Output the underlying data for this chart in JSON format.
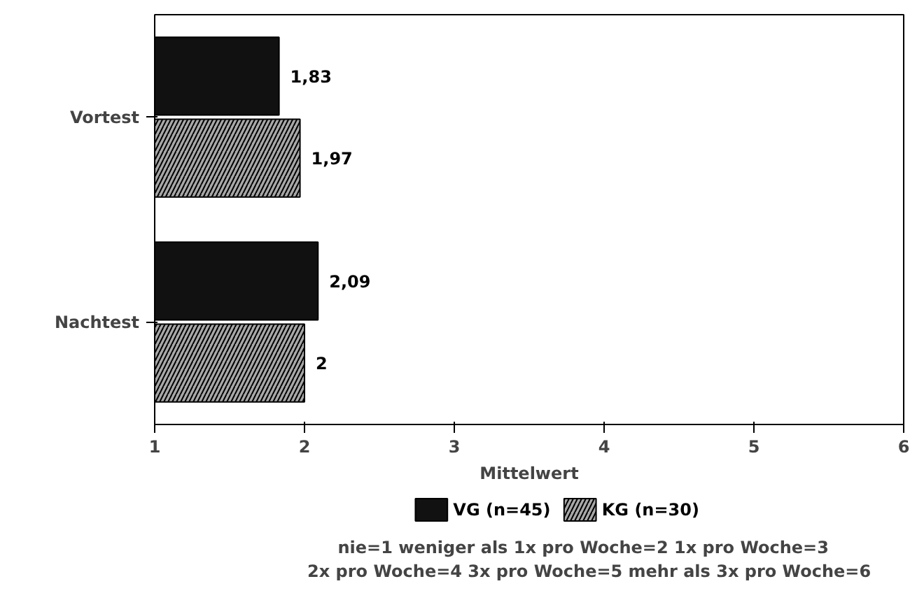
{
  "chart_data": {
    "type": "bar",
    "orientation": "horizontal",
    "categories": [
      "Vortest",
      "Nachtest"
    ],
    "xlabel": "Mittelwert",
    "xlim": [
      1,
      6
    ],
    "xticks": [
      1,
      2,
      3,
      4,
      5,
      6
    ],
    "series": [
      {
        "name": "VG (n=45)",
        "color": "#111111",
        "values": [
          1.83,
          2.09
        ],
        "value_labels": [
          "1,83",
          "2,09"
        ]
      },
      {
        "name": "KG (n=30)",
        "color": "#a8a8a8",
        "values": [
          1.97,
          2
        ],
        "value_labels": [
          "1,97",
          "2"
        ]
      }
    ],
    "legend": "bottom",
    "grid": false,
    "annotations": [
      "nie=1      weniger als 1x pro Woche=2      1x pro Woche=3",
      "2x pro Woche=4     3x pro Woche=5     mehr als 3x pro Woche=6"
    ]
  }
}
